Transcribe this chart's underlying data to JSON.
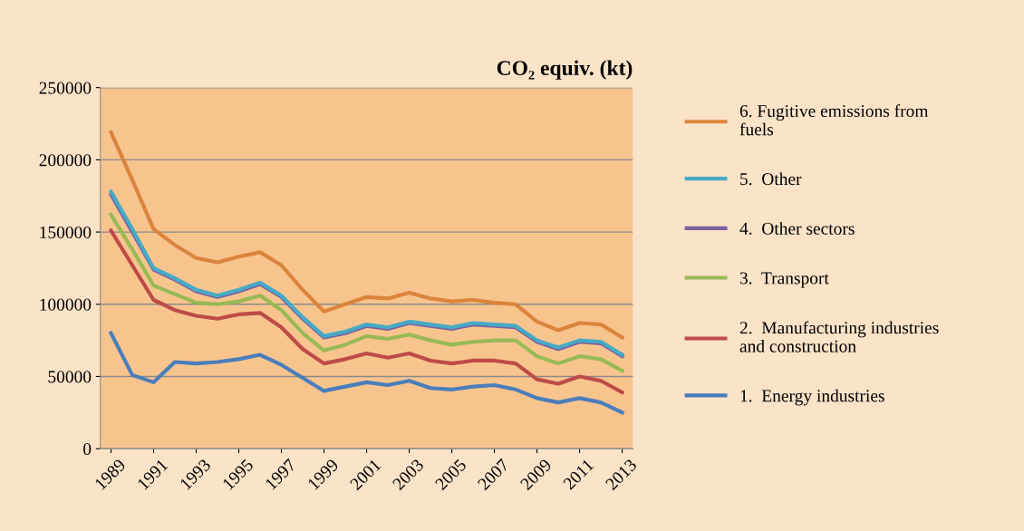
{
  "chart_data": {
    "type": "line",
    "title": "CO₂ equiv. (kt)",
    "x": [
      1989,
      1990,
      1991,
      1992,
      1993,
      1994,
      1995,
      1996,
      1997,
      1998,
      1999,
      2000,
      2001,
      2002,
      2003,
      2004,
      2005,
      2006,
      2007,
      2008,
      2009,
      2010,
      2011,
      2012,
      2013
    ],
    "xlim": [
      1988.5,
      2013.5
    ],
    "xticks": [
      1989,
      1991,
      1993,
      1995,
      1997,
      1999,
      2001,
      2003,
      2005,
      2007,
      2009,
      2011,
      2013
    ],
    "ylim": [
      0,
      250000
    ],
    "yticks": [
      0,
      50000,
      100000,
      150000,
      200000,
      250000
    ],
    "grid": "y",
    "legend": "right",
    "marker": "none",
    "line_style": "solid",
    "series": [
      {
        "name": "1.  Energy industries",
        "color": "#4a7ebb",
        "values": [
          80000,
          51000,
          46000,
          60000,
          59000,
          60000,
          62000,
          65000,
          58000,
          49000,
          40000,
          43000,
          46000,
          44000,
          47000,
          42000,
          41000,
          43000,
          44000,
          41000,
          35000,
          32000,
          35000,
          32000,
          25000
        ]
      },
      {
        "name": "2.  Manufacturing industries and construction",
        "color": "#be4b48",
        "values": [
          151000,
          127000,
          103000,
          96000,
          92000,
          90000,
          93000,
          94000,
          84000,
          69000,
          59000,
          62000,
          66000,
          63000,
          66000,
          61000,
          59000,
          61000,
          61000,
          59000,
          48000,
          45000,
          50000,
          47000,
          39000
        ]
      },
      {
        "name": "3.  Transport",
        "color": "#98b954",
        "values": [
          162000,
          138000,
          113000,
          107000,
          101000,
          100000,
          102000,
          106000,
          96000,
          80000,
          68000,
          72000,
          78000,
          76000,
          79000,
          75000,
          72000,
          74000,
          75000,
          75000,
          64000,
          59000,
          64000,
          62000,
          54000
        ]
      },
      {
        "name": "4.  Other sectors",
        "color": "#7d60a0",
        "values": [
          176000,
          150000,
          124000,
          117000,
          109000,
          105000,
          109000,
          114000,
          105000,
          90000,
          77000,
          80000,
          85000,
          83000,
          87000,
          85000,
          83000,
          86000,
          85000,
          84000,
          74000,
          69000,
          74000,
          73000,
          64000
        ]
      },
      {
        "name": "5.  Other",
        "color": "#46aac5",
        "values": [
          178000,
          152000,
          125000,
          118000,
          110000,
          106000,
          110000,
          115000,
          106000,
          91000,
          78000,
          81000,
          86000,
          84000,
          88000,
          86000,
          84000,
          87000,
          86000,
          85000,
          75000,
          70000,
          75000,
          74000,
          65000
        ]
      },
      {
        "name": "6. Fugitive emissions from fuels",
        "color": "#db843d",
        "values": [
          219000,
          186000,
          152000,
          141000,
          132000,
          129000,
          133000,
          136000,
          127000,
          110000,
          95000,
          100000,
          105000,
          104000,
          108000,
          104000,
          102000,
          103000,
          101000,
          100000,
          88000,
          82000,
          87000,
          86000,
          77000
        ]
      }
    ]
  }
}
